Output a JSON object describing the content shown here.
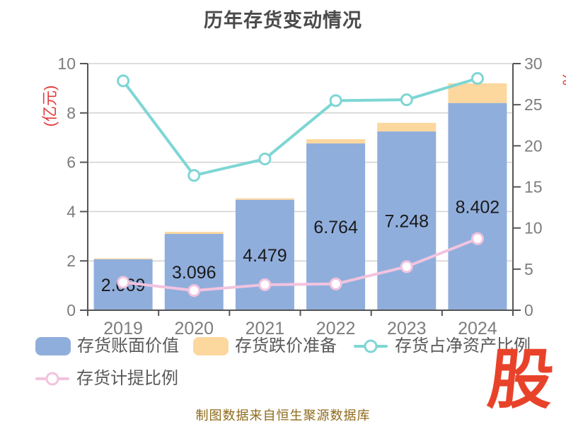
{
  "left_axis": {
    "name": "(亿元)",
    "min": 0,
    "max": 10,
    "step": 2,
    "color": "#e23b3b"
  },
  "right_axis": {
    "name": "%",
    "min": 0,
    "max": 30,
    "step": 5,
    "color": "#e23b3b"
  },
  "footer": {
    "text": "制图数据来自恒生聚源数据库",
    "color": "#8e6a1a"
  },
  "logo": {
    "text": "股",
    "color": "#e8432a"
  },
  "palette": {
    "grid": "#d2d2d2",
    "axis": "#555555",
    "tick_label": "#7d7d7d",
    "value_label": "#1a1a1a",
    "title": "#4a4a4a",
    "legend_text": "#595959",
    "background": "#ffffff"
  },
  "chart_data": {
    "type": "bar",
    "title": "历年存货变动情况",
    "categories": [
      "2019",
      "2020",
      "2021",
      "2022",
      "2023",
      "2024"
    ],
    "series": [
      {
        "name": "存货账面价值",
        "type": "bar",
        "stack": true,
        "axis": "left",
        "color": "#90aedc",
        "values": [
          2.069,
          3.096,
          4.479,
          6.764,
          7.248,
          8.402
        ],
        "labels": [
          "2.069",
          "3.096",
          "4.479",
          "6.764",
          "7.248",
          "8.402"
        ]
      },
      {
        "name": "存货跌价准备",
        "type": "bar",
        "stack": true,
        "axis": "left",
        "color": "#fcd79e",
        "values": [
          0.035,
          0.08,
          0.06,
          0.17,
          0.35,
          0.8
        ]
      },
      {
        "name": "存货占净资产比例",
        "type": "line",
        "axis": "right",
        "color": "#7ed6d4",
        "values": [
          27.9,
          16.4,
          18.4,
          25.5,
          25.6,
          28.2
        ]
      },
      {
        "name": "存货计提比例",
        "type": "line",
        "axis": "right",
        "color": "#f2c3df",
        "values": [
          3.4,
          2.4,
          3.1,
          3.2,
          5.3,
          8.7
        ]
      }
    ],
    "xlabel": "",
    "ylabel_left": "(亿元)",
    "ylabel_right": "%",
    "ylim_left": [
      0,
      10
    ],
    "ylim_right": [
      0,
      30
    ],
    "grid": true,
    "legend_position": "bottom"
  }
}
